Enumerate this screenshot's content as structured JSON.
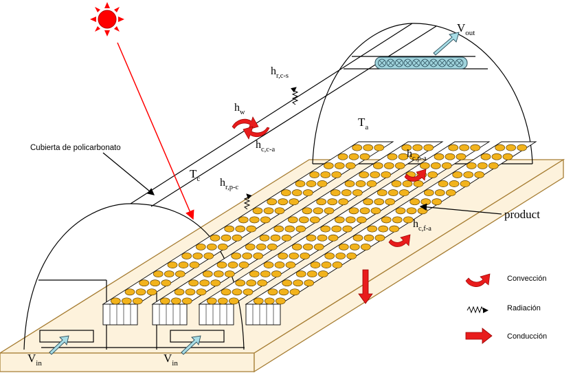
{
  "labels": {
    "cover": "Cubierta de policarbonato",
    "product": "product",
    "Tc": {
      "base": "T",
      "sub": "c"
    },
    "Ta": {
      "base": "T",
      "sub": "a"
    },
    "Vout": {
      "base": "V",
      "sub": "out"
    },
    "Vin_left": {
      "base": "V",
      "sub": "in"
    },
    "Vin_right": {
      "base": "V",
      "sub": "in"
    },
    "hrcs": {
      "base": "h",
      "sub": "r,c-s"
    },
    "hw": {
      "base": "h",
      "sub": "w"
    },
    "hcca": {
      "base": "h",
      "sub": "c,c-a"
    },
    "hrpc": {
      "base": "h",
      "sub": "r,p-c"
    },
    "hcpa": {
      "base": "h",
      "sub": "c,p-a"
    },
    "hcfa": {
      "base": "h",
      "sub": "c,f-a"
    }
  },
  "legend": {
    "convection": "Convección",
    "radiation": "Radiación",
    "conduction": "Conducción"
  },
  "colors": {
    "sun": "#ff0000",
    "ray": "#ff0000",
    "base_fill": "#fdf2dc",
    "base_stroke": "#a67d33",
    "product_fill": "#f2b31c",
    "fan_fill": "#9fd3dc",
    "arrow_fill": "#e81c1c"
  }
}
